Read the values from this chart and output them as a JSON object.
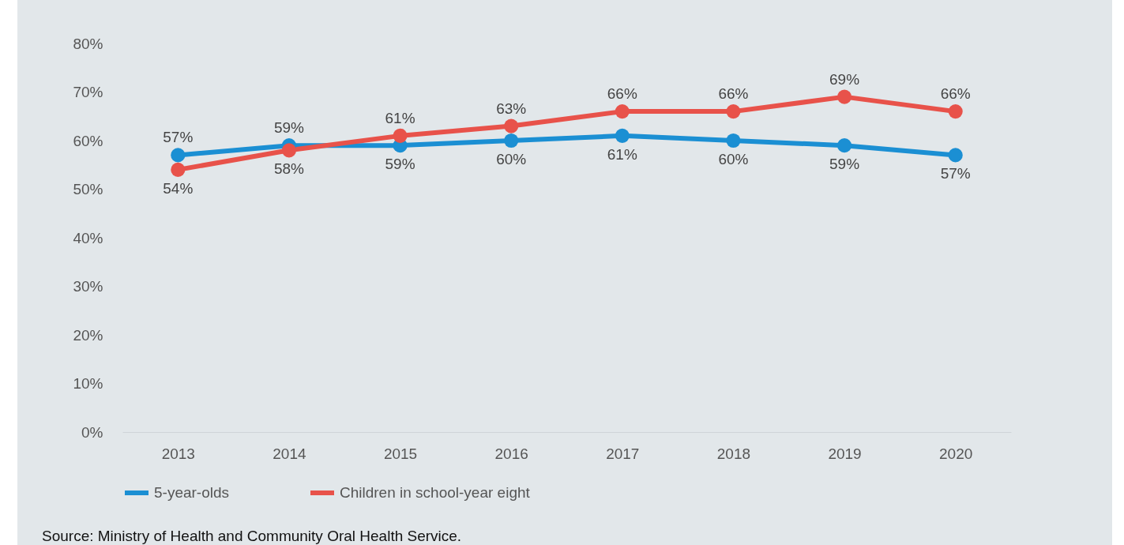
{
  "chart_data": {
    "type": "line",
    "categories": [
      "2013",
      "2014",
      "2015",
      "2016",
      "2017",
      "2018",
      "2019",
      "2020"
    ],
    "series": [
      {
        "name": "5-year-olds",
        "color": "#1b8fd3",
        "values": [
          57,
          59,
          59,
          60,
          61,
          60,
          59,
          57
        ],
        "value_labels": [
          "57%",
          "59%",
          "59%",
          "60%",
          "61%",
          "60%",
          "59%",
          "57%"
        ]
      },
      {
        "name": "Children in school-year eight",
        "color": "#e8524a",
        "values": [
          54,
          58,
          61,
          63,
          66,
          66,
          69,
          66
        ],
        "value_labels": [
          "54%",
          "58%",
          "61%",
          "63%",
          "66%",
          "66%",
          "69%",
          "66%"
        ]
      }
    ],
    "ylim": [
      0,
      80
    ],
    "yticks": [
      {
        "value": 0,
        "label": "0%"
      },
      {
        "value": 10,
        "label": "10%"
      },
      {
        "value": 20,
        "label": "20%"
      },
      {
        "value": 30,
        "label": "30%"
      },
      {
        "value": 40,
        "label": "40%"
      },
      {
        "value": 50,
        "label": "50%"
      },
      {
        "value": 60,
        "label": "60%"
      },
      {
        "value": 70,
        "label": "70%"
      },
      {
        "value": 80,
        "label": "80%"
      }
    ],
    "legend": "bottom",
    "marker": "circle",
    "annotations": [
      "Source: Ministry of Health and Community Oral Health Service."
    ]
  }
}
